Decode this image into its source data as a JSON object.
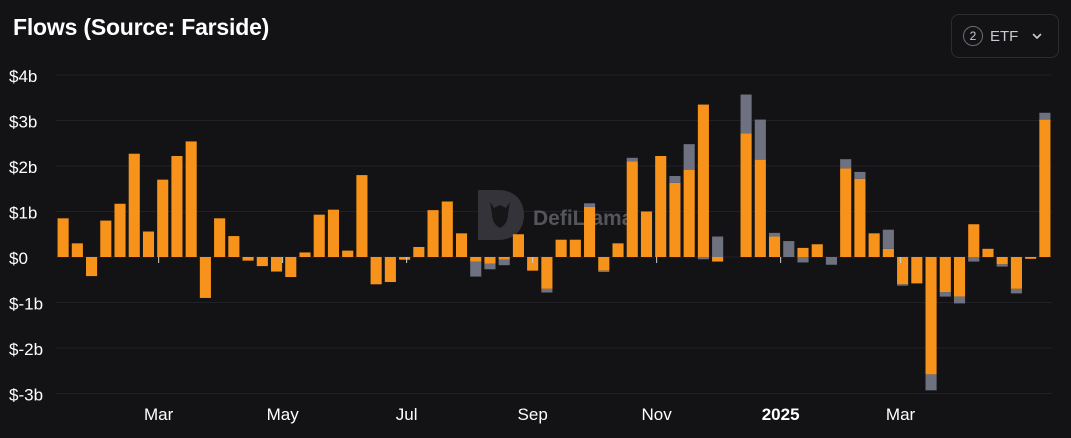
{
  "header": {
    "title": "Flows (Source: Farside)"
  },
  "filter": {
    "count": "2",
    "label": "ETF",
    "chevron_icon": "chevron-down-icon"
  },
  "watermark": {
    "text": "DefiLlama",
    "icon": "llama-logo-icon"
  },
  "colors": {
    "background": "#131316",
    "series_a": "#f7931a",
    "series_b": "#6e7280",
    "grid": "#202126",
    "text": "#ffffff"
  },
  "chart_data": {
    "type": "bar",
    "stacked": true,
    "x_start": "2024-01-14",
    "x_step_days": 7,
    "x_tick_labels": [
      "Mar",
      "May",
      "Jul",
      "Sep",
      "Nov",
      "2025",
      "Mar"
    ],
    "y_ticks": [
      4,
      3,
      2,
      1,
      0,
      -1,
      -2,
      -3
    ],
    "y_tick_labels": [
      "$4b",
      "$3b",
      "$2b",
      "$1b",
      "$0",
      "$-1b",
      "$-2b",
      "$-3b"
    ],
    "ylim": [
      -3.1,
      4.0
    ],
    "grid": true,
    "legend": "none",
    "series": [
      {
        "values": [
          0.85,
          0.3,
          -0.42,
          0.8,
          1.17,
          2.27,
          0.56,
          1.7,
          2.22,
          2.54,
          -0.9,
          0.85,
          0.46,
          -0.08,
          -0.2,
          -0.32,
          -0.44,
          0.1,
          0.93,
          1.04,
          0.14,
          1.8,
          -0.6,
          -0.55,
          -0.06,
          0.22,
          1.03,
          1.22,
          0.52,
          -0.1,
          -0.15,
          -0.06,
          0.5,
          -0.3,
          -0.7,
          0.38,
          0.38,
          1.1,
          -0.3,
          0.3,
          2.1,
          1.0,
          2.22,
          1.63,
          1.92,
          3.35,
          -0.1,
          0.0,
          2.72,
          2.14,
          0.45,
          0.0,
          0.2,
          0.28,
          0.0,
          1.95,
          1.72,
          0.52,
          0.18,
          -0.6,
          -0.58,
          -2.58,
          -0.77,
          -0.87,
          0.72,
          0.18,
          -0.16,
          -0.7,
          -0.04,
          3.02
        ]
      },
      {
        "values": [
          0.0,
          0.0,
          0.0,
          0.0,
          0.0,
          0.0,
          0.0,
          0.0,
          0.0,
          0.0,
          0.0,
          0.0,
          0.0,
          0.0,
          0.0,
          0.0,
          0.0,
          0.0,
          0.0,
          0.0,
          0.0,
          0.0,
          0.0,
          0.0,
          0.0,
          0.0,
          0.0,
          0.0,
          0.0,
          -0.33,
          -0.12,
          -0.12,
          0.0,
          0.0,
          -0.08,
          0.0,
          0.0,
          0.08,
          -0.03,
          0.0,
          0.08,
          0.0,
          0.0,
          0.15,
          0.56,
          -0.05,
          0.45,
          0.0,
          0.85,
          0.88,
          0.08,
          0.35,
          -0.12,
          0.0,
          -0.17,
          0.2,
          0.15,
          0.0,
          0.42,
          -0.03,
          0.0,
          -0.35,
          -0.1,
          -0.15,
          -0.1,
          0.0,
          -0.05,
          -0.1,
          0.0,
          0.15
        ]
      }
    ]
  }
}
